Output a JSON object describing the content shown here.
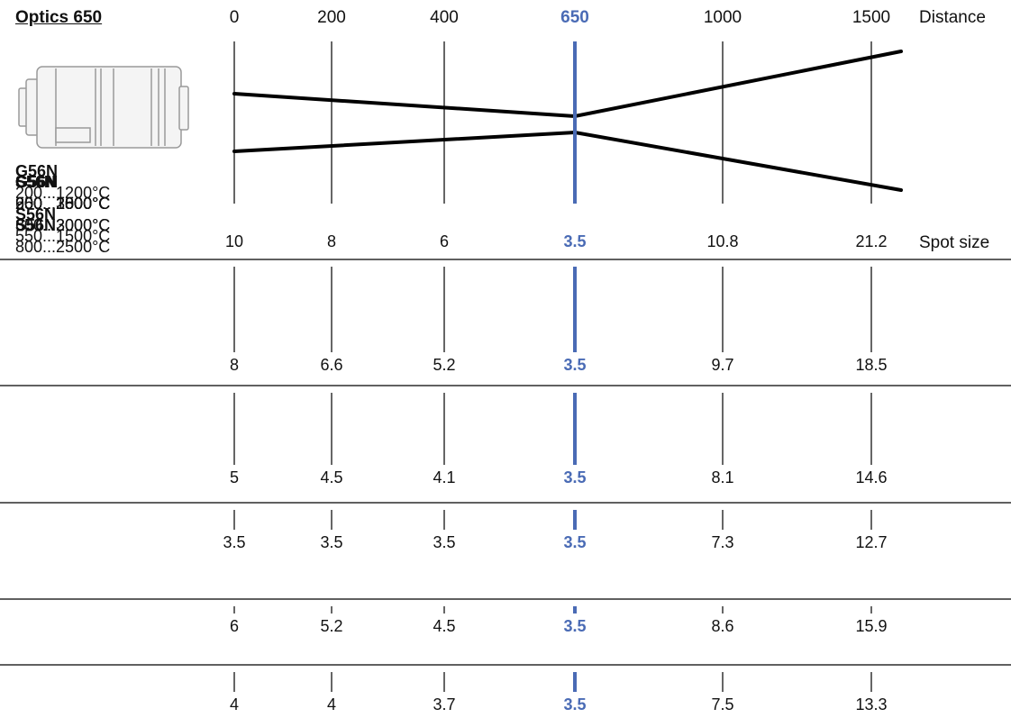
{
  "title": "Optics 650",
  "distance_label": "Distance",
  "spot_size_label": "Spot size",
  "distances": [
    "0",
    "200",
    "400",
    "650",
    "1000",
    "1500"
  ],
  "focus_distance": "650",
  "highlight_color": "#4a6bb5",
  "device_icon": "pyrometer-device-icon",
  "rows": [
    {
      "lines": [
        {
          "text": "G56N",
          "bold": true
        },
        {
          "text": "200...1200°C"
        },
        {
          "text": "S56N",
          "bold": true
        },
        {
          "text": "550...1500°C"
        }
      ],
      "spot_sizes": [
        "10",
        "8",
        "6",
        "3.5",
        "10.8",
        "21.2"
      ]
    },
    {
      "lines": [
        {
          "text": "G56N",
          "bold": true
        },
        {
          "text": "250...1500°C"
        },
        {
          "text": "S56N",
          "bold": true
        },
        {
          "text": "800...2500°C"
        }
      ],
      "spot_sizes": [
        "8",
        "6.6",
        "5.2",
        "3.5",
        "9.7",
        "18.5"
      ]
    },
    {
      "lines": [
        {
          "text": "G56N",
          "bold": true
        },
        {
          "text": "200...2000°C"
        },
        {
          "text": "350...2000°C"
        }
      ],
      "spot_sizes": [
        "5",
        "4.5",
        "4.1",
        "3.5",
        "8.1",
        "14.6"
      ]
    },
    {
      "lines": [
        {
          "text": "G56N",
          "bold": true
        },
        {
          "text": "250...2500°C"
        }
      ],
      "spot_sizes": [
        "3.5",
        "3.5",
        "3.5",
        "3.5",
        "7.3",
        "12.7"
      ]
    },
    {
      "lines": [
        {
          "text": "S56N",
          "bold": true
        },
        {
          "text": "600...1800°C"
        }
      ],
      "spot_sizes": [
        "6",
        "5.2",
        "4.5",
        "3.5",
        "8.6",
        "15.9"
      ]
    },
    {
      "lines": [
        {
          "text": "S56N",
          "bold": true
        },
        {
          "text": "900...3000°C"
        },
        {
          "text": "600...3000°C"
        }
      ],
      "spot_sizes": [
        "4",
        "4",
        "3.7",
        "3.5",
        "7.5",
        "13.3"
      ]
    }
  ]
}
